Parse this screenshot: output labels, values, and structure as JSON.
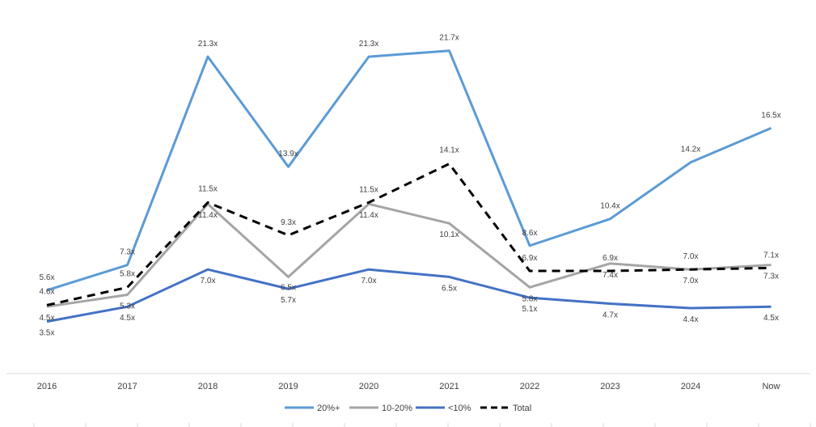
{
  "chart_data": {
    "type": "line",
    "title": "",
    "xlabel": "",
    "ylabel": "",
    "ylim": [
      0,
      24
    ],
    "grid": false,
    "legend_position": "bottom",
    "categories": [
      "2016",
      "2017",
      "2018",
      "2019",
      "2020",
      "2021",
      "2022",
      "2023",
      "2024",
      "Now"
    ],
    "series": [
      {
        "name": "20%+",
        "color": "#5b9bd5",
        "dash": "solid",
        "values": [
          5.6,
          7.3,
          21.3,
          13.9,
          21.3,
          21.7,
          8.6,
          10.4,
          14.2,
          16.5
        ],
        "labels": [
          "5.6x",
          "7.3x",
          "21.3x",
          "13.9x",
          "21.3x",
          "21.7x",
          "8.6x",
          "10.4x",
          "14.2x",
          "16.5x"
        ]
      },
      {
        "name": "10-20%",
        "color": "#a5a5a5",
        "dash": "solid",
        "values": [
          4.5,
          5.3,
          11.4,
          6.5,
          11.4,
          10.1,
          5.8,
          7.4,
          7.0,
          7.3
        ],
        "labels": [
          "4.5x",
          "5.3x",
          "11.4x",
          "6.5x",
          "11.4x",
          "10.1x",
          "5.8x",
          "7.4x",
          "7.0x",
          "7.3x"
        ]
      },
      {
        "name": "<10%",
        "color": "#4472c4",
        "dash": "solid",
        "values": [
          3.5,
          4.5,
          7.0,
          5.7,
          7.0,
          6.5,
          5.1,
          4.7,
          4.4,
          4.5
        ],
        "labels": [
          "3.5x",
          "4.5x",
          "7.0x",
          "5.7x",
          "7.0x",
          "6.5x",
          "5.1x",
          "4.7x",
          "4.4x",
          "4.5x"
        ]
      },
      {
        "name": "Total",
        "color": "#000000",
        "dash": "dashed",
        "values": [
          4.6,
          5.8,
          11.5,
          9.3,
          11.5,
          14.1,
          6.9,
          6.9,
          7.0,
          7.1
        ],
        "labels": [
          "4.6x",
          "5.8x",
          "11.5x",
          "9.3x",
          "11.5x",
          "14.1x",
          "6.9x",
          "6.9x",
          "7.0x",
          "7.1x"
        ]
      }
    ]
  }
}
